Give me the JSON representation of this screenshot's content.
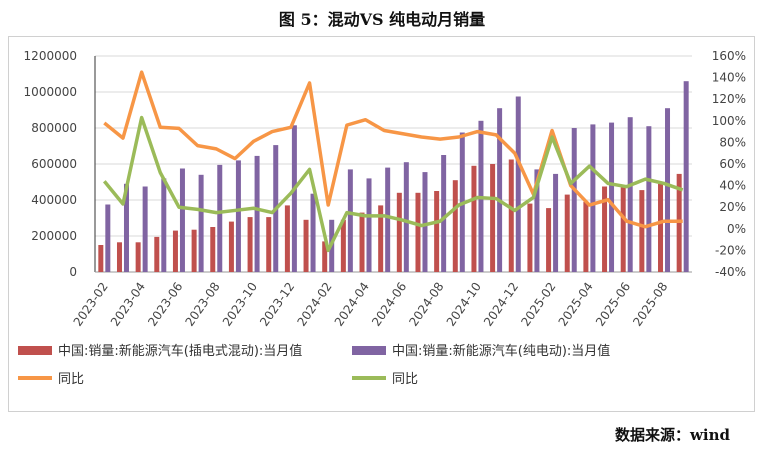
{
  "title": "图 5：混动VS 纯电动月销量",
  "source": "数据来源：wind",
  "chart_data": {
    "type": "bar+line",
    "categories": [
      "2023-02",
      "2023-03",
      "2023-04",
      "2023-05",
      "2023-06",
      "2023-07",
      "2023-08",
      "2023-09",
      "2023-10",
      "2023-11",
      "2023-12",
      "2024-01",
      "2024-02",
      "2024-03",
      "2024-04",
      "2024-05",
      "2024-06",
      "2024-07",
      "2024-08",
      "2024-09",
      "2024-10",
      "2024-11",
      "2024-12",
      "2025-01",
      "2025-02",
      "2025-03",
      "2025-04",
      "2025-05",
      "2025-06",
      "2025-07",
      "2025-08",
      "2025-09"
    ],
    "xtick_labels": [
      "2023-02",
      "2023-04",
      "2023-06",
      "2023-08",
      "2023-10",
      "2023-12",
      "2024-02",
      "2024-04",
      "2024-06",
      "2024-08",
      "2024-10",
      "2024-12",
      "2025-02",
      "2025-04",
      "2025-06",
      "2025-08"
    ],
    "left_axis": {
      "ylim": [
        0,
        1200000
      ],
      "ticks": [
        "0",
        "200000",
        "400000",
        "600000",
        "800000",
        "1000000",
        "1200000"
      ]
    },
    "right_axis": {
      "ylim": [
        -40,
        160
      ],
      "ticks": [
        "-40%",
        "-20%",
        "0%",
        "20%",
        "40%",
        "60%",
        "80%",
        "100%",
        "120%",
        "140%",
        "160%"
      ]
    },
    "series": [
      {
        "name": "中国:销量:新能源汽车(插电式混动):当月值",
        "type": "bar",
        "axis": "left",
        "color": "#c0504d",
        "values": [
          150000,
          165000,
          165000,
          195000,
          230000,
          235000,
          250000,
          280000,
          305000,
          305000,
          370000,
          290000,
          170000,
          290000,
          330000,
          370000,
          440000,
          440000,
          450000,
          510000,
          590000,
          600000,
          625000,
          380000,
          355000,
          430000,
          390000,
          475000,
          470000,
          455000,
          490000,
          545000
        ]
      },
      {
        "name": "中国:销量:新能源汽车(纯电动):当月值",
        "type": "bar",
        "axis": "left",
        "color": "#8064a2",
        "values": [
          375000,
          490000,
          475000,
          520000,
          575000,
          540000,
          595000,
          620000,
          645000,
          705000,
          815000,
          435000,
          290000,
          570000,
          520000,
          580000,
          610000,
          555000,
          650000,
          775000,
          840000,
          910000,
          975000,
          570000,
          545000,
          800000,
          820000,
          830000,
          860000,
          810000,
          910000,
          1060000
        ]
      },
      {
        "name": "同比",
        "type": "line",
        "axis": "right",
        "color": "#f79646",
        "values": [
          98,
          84,
          145,
          94,
          93,
          77,
          74,
          65,
          81,
          90,
          94,
          135,
          22,
          96,
          101,
          91,
          88,
          85,
          83,
          85,
          90,
          87,
          70,
          32,
          91,
          40,
          22,
          27,
          7,
          2,
          7,
          7
        ]
      },
      {
        "name": "同比",
        "type": "line",
        "axis": "right",
        "color": "#9bbb59",
        "values": [
          44,
          23,
          103,
          52,
          20,
          18,
          15,
          17,
          19,
          15,
          33,
          55,
          -20,
          15,
          12,
          12,
          8,
          3,
          7,
          22,
          29,
          28,
          17,
          29,
          85,
          42,
          58,
          42,
          39,
          46,
          42,
          36
        ]
      }
    ],
    "legend": "bottom",
    "grid": true
  }
}
